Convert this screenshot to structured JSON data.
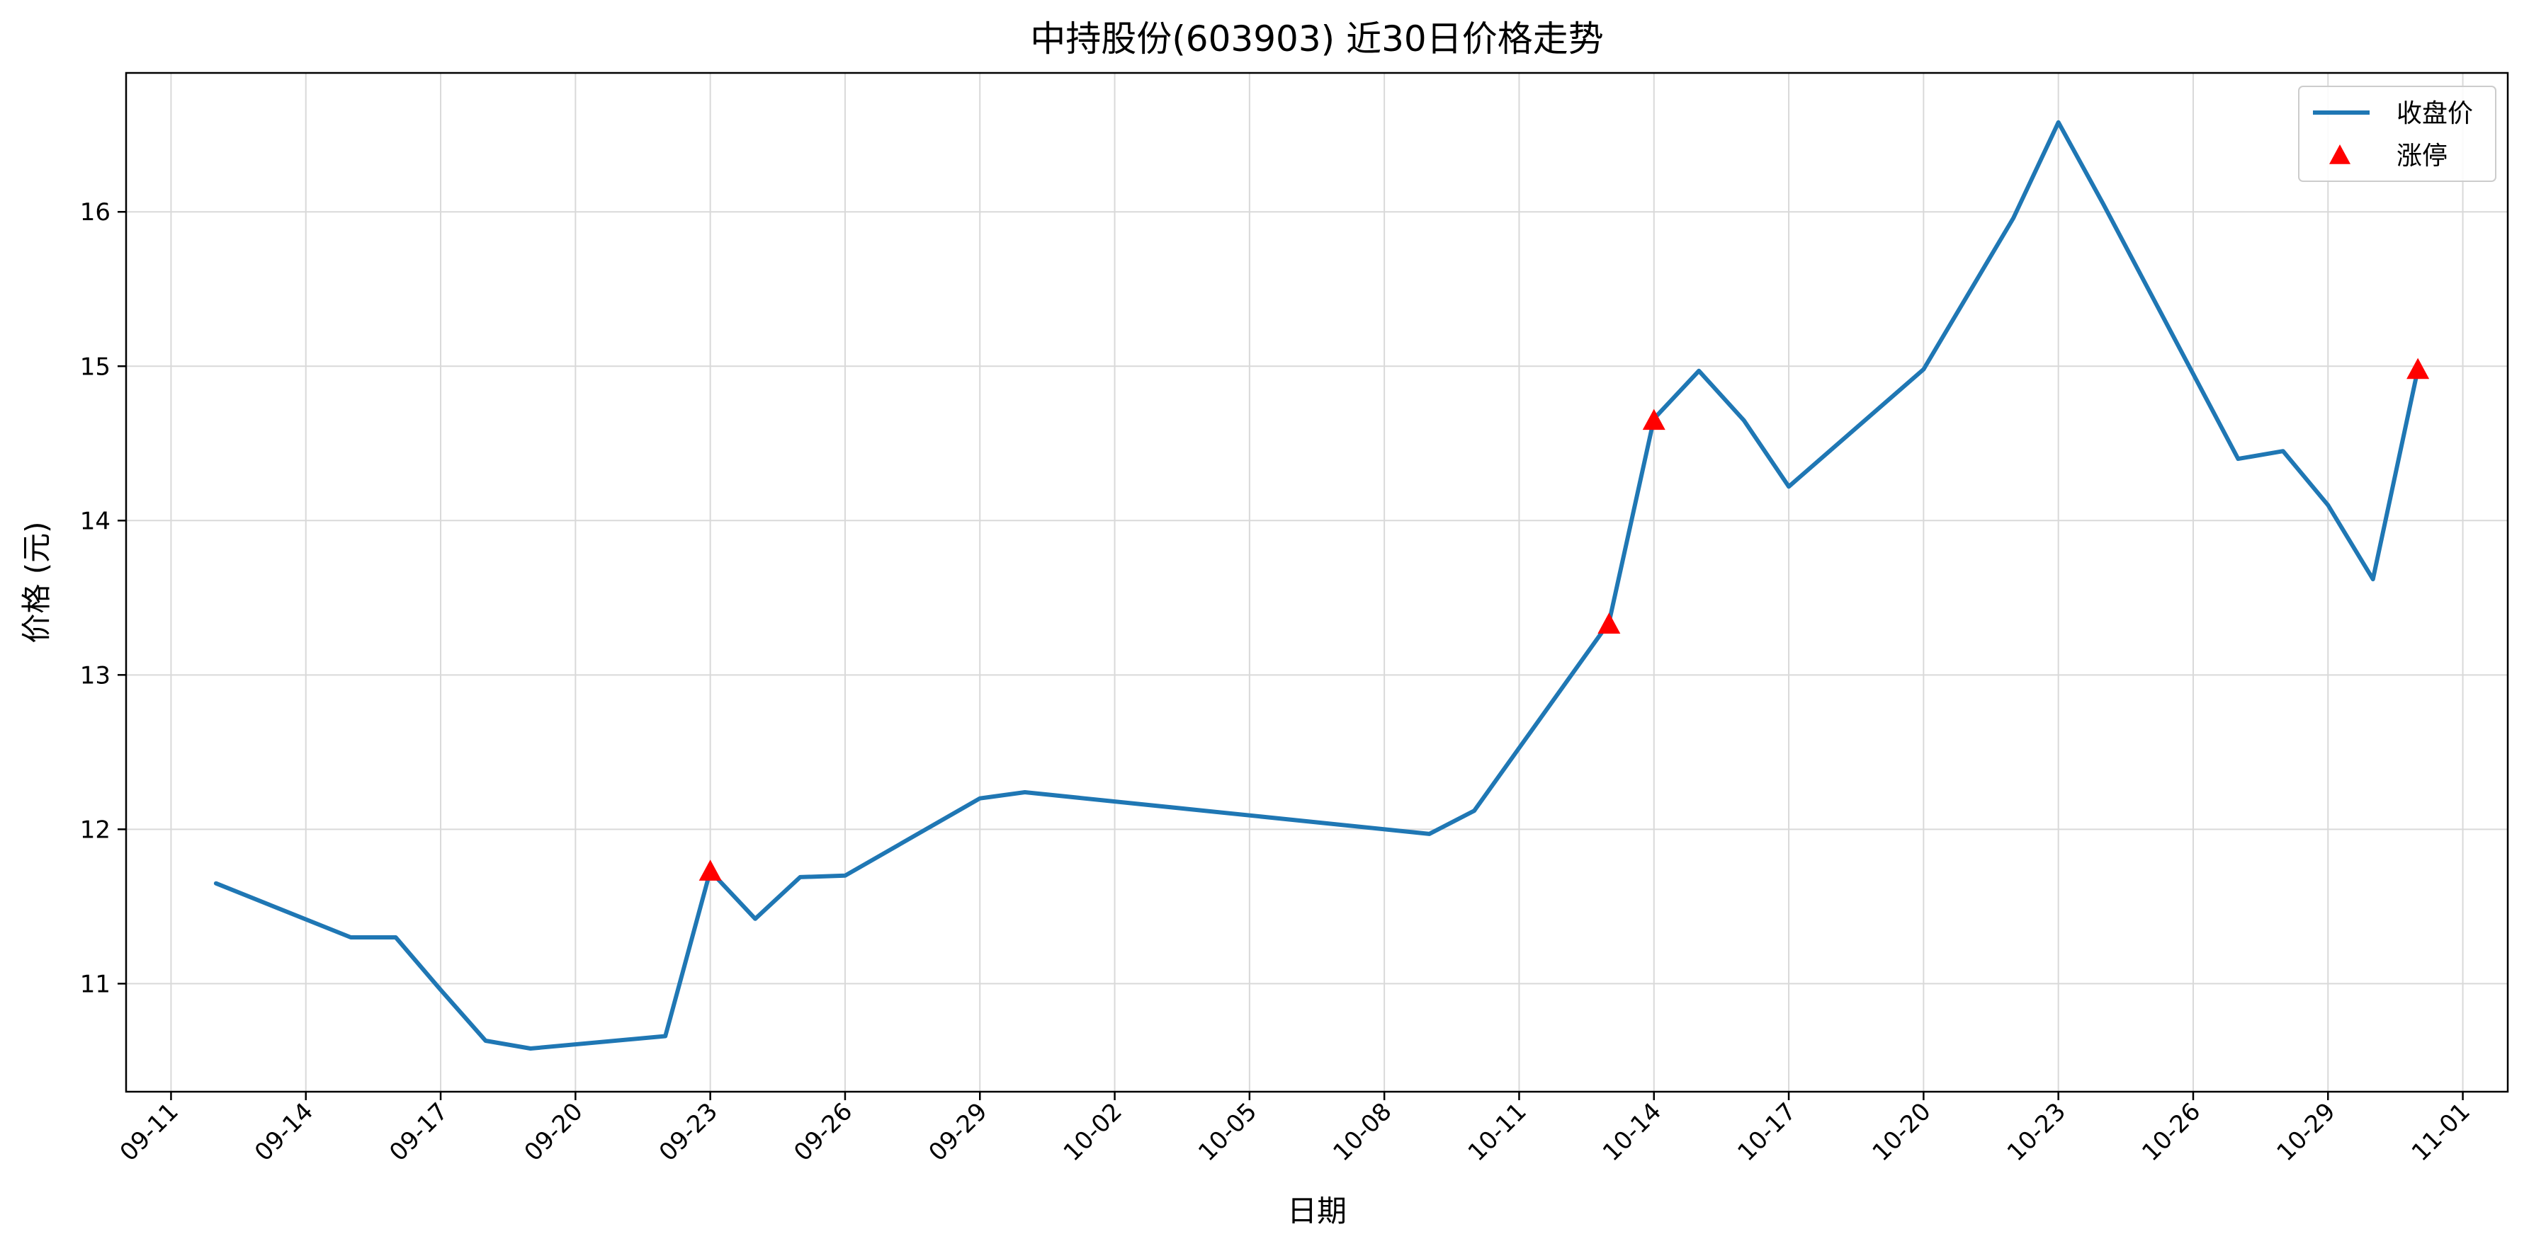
{
  "chart_data": {
    "type": "line",
    "title": "中持股份(603903) 近30日价格走势",
    "xlabel": "日期",
    "ylabel": "价格 (元)",
    "x_date_range": [
      "2025-09-10",
      "2025-11-02"
    ],
    "x_ticks": [
      "09-11",
      "09-14",
      "09-17",
      "09-20",
      "09-23",
      "09-26",
      "09-29",
      "10-02",
      "10-05",
      "10-08",
      "10-11",
      "10-14",
      "10-17",
      "10-20",
      "10-23",
      "10-26",
      "10-29",
      "11-01"
    ],
    "ylim": [
      10.3,
      16.9
    ],
    "y_ticks": [
      11,
      12,
      13,
      14,
      15,
      16
    ],
    "grid": true,
    "legend": {
      "placement": "top-right",
      "entries": [
        "收盘价",
        "涨停"
      ]
    },
    "colors": {
      "line": "#1f77b4",
      "limit_up": "#ff0000"
    },
    "series": [
      {
        "name": "收盘价",
        "points": [
          {
            "x": "09-12",
            "y": 11.65
          },
          {
            "x": "09-15",
            "y": 11.3
          },
          {
            "x": "09-16",
            "y": 11.3
          },
          {
            "x": "09-17",
            "y": 10.96
          },
          {
            "x": "09-18",
            "y": 10.63
          },
          {
            "x": "09-19",
            "y": 10.58
          },
          {
            "x": "09-22",
            "y": 10.66
          },
          {
            "x": "09-23",
            "y": 11.73
          },
          {
            "x": "09-24",
            "y": 11.42
          },
          {
            "x": "09-25",
            "y": 11.69
          },
          {
            "x": "09-26",
            "y": 11.7
          },
          {
            "x": "09-29",
            "y": 12.2
          },
          {
            "x": "09-30",
            "y": 12.24
          },
          {
            "x": "10-09",
            "y": 11.97
          },
          {
            "x": "10-10",
            "y": 12.12
          },
          {
            "x": "10-13",
            "y": 13.34
          },
          {
            "x": "10-14",
            "y": 14.66
          },
          {
            "x": "10-15",
            "y": 14.97
          },
          {
            "x": "10-16",
            "y": 14.65
          },
          {
            "x": "10-17",
            "y": 14.22
          },
          {
            "x": "10-20",
            "y": 14.98
          },
          {
            "x": "10-22",
            "y": 15.96
          },
          {
            "x": "10-23",
            "y": 16.58
          },
          {
            "x": "10-24",
            "y": 16.05
          },
          {
            "x": "10-27",
            "y": 14.4
          },
          {
            "x": "10-28",
            "y": 14.45
          },
          {
            "x": "10-29",
            "y": 14.1
          },
          {
            "x": "10-30",
            "y": 13.62
          },
          {
            "x": "10-31",
            "y": 14.98
          }
        ]
      },
      {
        "name": "涨停",
        "marker": "triangle",
        "points": [
          {
            "x": "09-23",
            "y": 11.73
          },
          {
            "x": "10-13",
            "y": 13.33
          },
          {
            "x": "10-14",
            "y": 14.65
          },
          {
            "x": "10-31",
            "y": 14.98
          }
        ]
      }
    ]
  }
}
